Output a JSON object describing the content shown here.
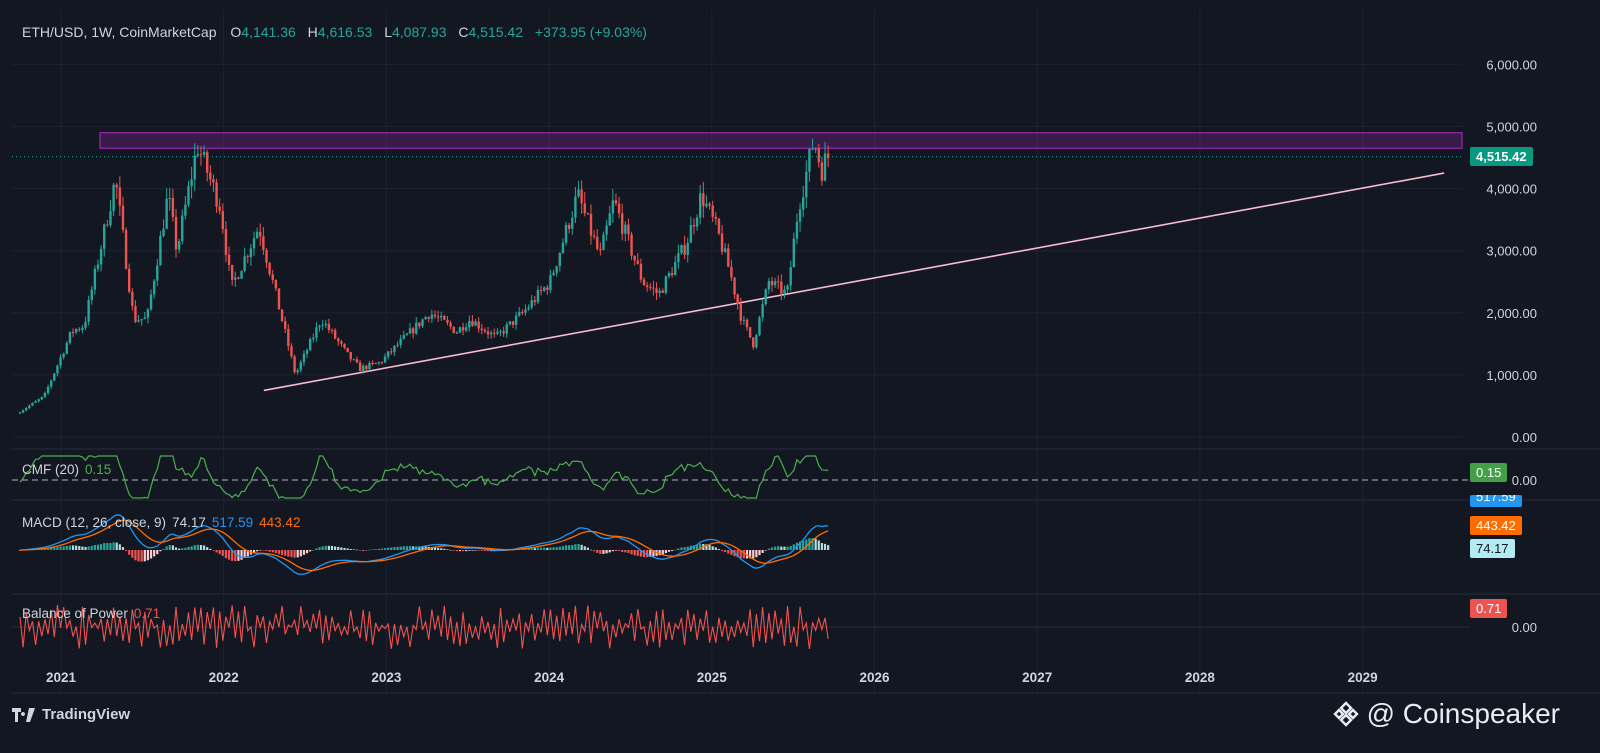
{
  "header": {
    "symbol": "ETH/USD, 1W, CoinMarketCap",
    "open_label": "O",
    "open": "4,141.36",
    "high_label": "H",
    "high": "4,616.53",
    "low_label": "L",
    "low": "4,087.93",
    "close_label": "C",
    "close": "4,515.42",
    "change": "+373.95 (+9.03%)"
  },
  "price_axis": [
    "6,000.00",
    "5,000.00",
    "4,000.00",
    "3,000.00",
    "2,000.00",
    "1,000.00",
    "0.00"
  ],
  "price_tag": "4,515.42",
  "year_labels": [
    "2021",
    "2022",
    "2023",
    "2024",
    "2025",
    "2026",
    "2027",
    "2028",
    "2029"
  ],
  "cmf": {
    "label": "CMF (20)",
    "value": "0.15",
    "tag": "0.15",
    "axis_zero": "0.00"
  },
  "macd": {
    "label": "MACD (12, 26, close, 9)",
    "hist": "74.17",
    "macd": "517.59",
    "signal": "443.42",
    "tag_macd": "517.59",
    "tag_signal": "443.42",
    "tag_hist": "74.17"
  },
  "bop": {
    "label": "Balance of Power",
    "value": "0.71",
    "tag": "0.71",
    "axis_zero": "0.00"
  },
  "footer": {
    "brand": "TradingView",
    "watermark": "@ Coinspeaker"
  },
  "colors": {
    "up": "#26a69a",
    "down": "#ef5350",
    "zone": "#9c27b0",
    "trend": "#f8bbd0",
    "cmf": "#4caf50",
    "macd": "#2196f3",
    "signal": "#ff6d00",
    "bop": "#ef5350",
    "bg": "#131722",
    "grid": "#1e2230"
  },
  "chart_data": {
    "type": "candlestick",
    "title": "ETH/USD, 1W, CoinMarketCap",
    "ylim": [
      0,
      6000
    ],
    "x_start": "2020-10",
    "x_end": "2029-07",
    "price_path": [
      [
        "2020-10-01",
        380
      ],
      [
        "2020-12-01",
        650
      ],
      [
        "2021-02-01",
        1700
      ],
      [
        "2021-03-01",
        1800
      ],
      [
        "2021-05-10",
        4150
      ],
      [
        "2021-06-20",
        1900
      ],
      [
        "2021-07-20",
        1900
      ],
      [
        "2021-09-05",
        3900
      ],
      [
        "2021-09-25",
        3000
      ],
      [
        "2021-11-10",
        4700
      ],
      [
        "2022-01-01",
        3700
      ],
      [
        "2022-01-25",
        2400
      ],
      [
        "2022-03-28",
        3400
      ],
      [
        "2022-05-15",
        2000
      ],
      [
        "2022-06-18",
        1000
      ],
      [
        "2022-08-15",
        1900
      ],
      [
        "2022-10-15",
        1300
      ],
      [
        "2022-11-10",
        1100
      ],
      [
        "2022-12-25",
        1200
      ],
      [
        "2023-04-15",
        2000
      ],
      [
        "2023-06-15",
        1700
      ],
      [
        "2023-07-15",
        1900
      ],
      [
        "2023-09-10",
        1600
      ],
      [
        "2023-11-10",
        2000
      ],
      [
        "2024-01-10",
        2500
      ],
      [
        "2024-03-12",
        3900
      ],
      [
        "2024-05-01",
        2900
      ],
      [
        "2024-06-01",
        3800
      ],
      [
        "2024-08-05",
        2500
      ],
      [
        "2024-09-10",
        2300
      ],
      [
        "2024-11-10",
        3100
      ],
      [
        "2024-12-15",
        3900
      ],
      [
        "2025-01-20",
        3300
      ],
      [
        "2025-02-15",
        2700
      ],
      [
        "2025-03-15",
        1900
      ],
      [
        "2025-04-10",
        1500
      ],
      [
        "2025-05-15",
        2500
      ],
      [
        "2025-06-25",
        2300
      ],
      [
        "2025-07-20",
        3700
      ],
      [
        "2025-08-15",
        4500
      ],
      [
        "2025-08-24",
        4800
      ],
      [
        "2025-09-10",
        4300
      ],
      [
        "2025-09-22",
        4515
      ]
    ],
    "resistance_zone": [
      4650,
      4900
    ],
    "trendline": {
      "from": [
        "2022-04-01",
        750
      ],
      "to": [
        "2029-07-01",
        4250
      ]
    },
    "last_close": 4515.42
  }
}
